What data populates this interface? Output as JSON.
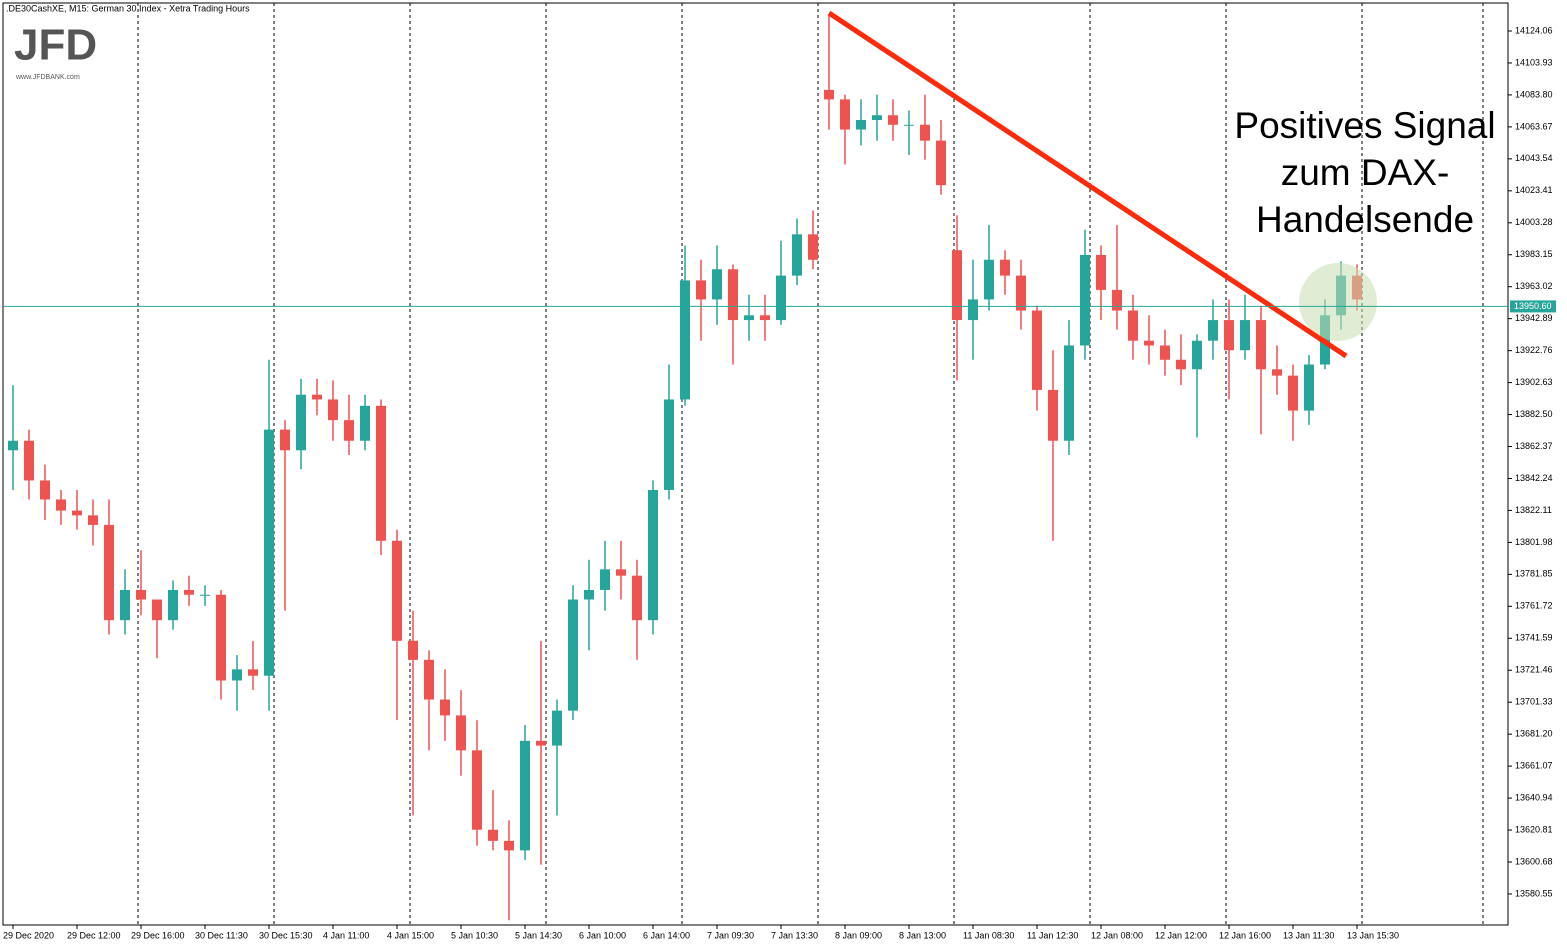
{
  "header": {
    "title": ".DE30CashXE, M15:  German 30 Index  - Xetra Trading Hours",
    "logo": "JFD",
    "logo_url": "www.JFDBANK.com"
  },
  "chart_data": {
    "type": "candlestick",
    "categories": [
      "29 Dec 2020",
      null,
      null,
      null,
      "29 Dec 12:00",
      null,
      null,
      null,
      "29 Dec 16:00",
      null,
      null,
      null,
      "30 Dec 11:30",
      null,
      null,
      null,
      "30 Dec 15:30",
      null,
      null,
      null,
      "4 Jan 11:00",
      null,
      null,
      null,
      "4 Jan 15:00",
      null,
      null,
      null,
      "5 Jan 10:30",
      null,
      null,
      null,
      "5 Jan 14:30",
      null,
      null,
      null,
      "6 Jan 10:00",
      null,
      null,
      null,
      "6 Jan 14:00",
      null,
      null,
      null,
      "7 Jan 09:30",
      null,
      null,
      null,
      "7 Jan 13:30",
      null,
      null,
      null,
      "8 Jan 09:00",
      null,
      null,
      null,
      "8 Jan 13:00",
      null,
      null,
      null,
      "11 Jan 08:30",
      null,
      null,
      null,
      "11 Jan 12:30",
      null,
      null,
      null,
      "12 Jan 08:00",
      null,
      null,
      null,
      "12 Jan 12:00",
      null,
      null,
      null,
      "12 Jan 16:00",
      null,
      null,
      null,
      "13 Jan 11:30",
      null,
      null,
      null,
      "13 Jan 15:30"
    ],
    "open": [
      13860,
      13866,
      13841,
      13829,
      13822,
      13819,
      13813,
      13753,
      13772,
      13766,
      13753,
      13772,
      13769,
      13769,
      13715,
      13722,
      13718,
      13873,
      13860,
      13895,
      13892,
      13879,
      13866,
      13888,
      13803,
      13740,
      13728,
      13703,
      13693,
      13671,
      13621,
      13614,
      13608,
      13677,
      13674,
      13696,
      13766,
      13772,
      13785,
      13781,
      13753,
      13835,
      13892,
      13967,
      13955,
      13974,
      13942,
      13945,
      13942,
      13970,
      13996,
      14087,
      14081,
      14062,
      14068,
      14071,
      14065,
      14065,
      14055,
      13986,
      13942,
      13955,
      13980,
      13970,
      13948,
      13898,
      13866,
      13926,
      13983,
      13961,
      13948,
      13929,
      13926,
      13917,
      13911,
      13929,
      13942,
      13923,
      13942,
      13911,
      13907,
      13885,
      13914,
      13945,
      13970
    ],
    "high": [
      13901,
      13873,
      13851,
      13835,
      13835,
      13829,
      13829,
      13785,
      13797,
      13766,
      13778,
      13781,
      13775,
      13772,
      13731,
      13740,
      13917,
      13879,
      13905,
      13905,
      13904,
      13895,
      13895,
      13892,
      13810,
      13759,
      13734,
      13722,
      13709,
      13690,
      13646,
      13627,
      13687,
      13740,
      13703,
      13775,
      13791,
      13803,
      13803,
      13791,
      13841,
      13914,
      13989,
      13980,
      13989,
      13977,
      13958,
      13958,
      13992,
      14006,
      14011,
      14134,
      14084,
      14081,
      14084,
      14081,
      14074,
      14084,
      14068,
      14008,
      13980,
      14002,
      13986,
      13980,
      13951,
      13923,
      13942,
      13999,
      13989,
      14002,
      13958,
      13945,
      13936,
      13933,
      13933,
      13955,
      13955,
      13958,
      13951,
      13926,
      13914,
      13920,
      13955,
      13979,
      13977
    ],
    "low": [
      13835,
      13829,
      13816,
      13813,
      13810,
      13800,
      13744,
      13744,
      13756,
      13729,
      13747,
      13762,
      13762,
      13703,
      13696,
      13709,
      13696,
      13759,
      13848,
      13882,
      13866,
      13857,
      13860,
      13794,
      13690,
      13630,
      13671,
      13677,
      13655,
      13611,
      13608,
      13564,
      13602,
      13599,
      13630,
      13690,
      13734,
      13759,
      13766,
      13728,
      13744,
      13829,
      13888,
      13929,
      13939,
      13914,
      13929,
      13929,
      13939,
      13964,
      13974,
      14062,
      14040,
      14052,
      14055,
      14055,
      14046,
      14043,
      14021,
      13904,
      13917,
      13948,
      13958,
      13936,
      13885,
      13803,
      13857,
      13917,
      13942,
      13936,
      13917,
      13914,
      13907,
      13901,
      13868,
      13917,
      13892,
      13917,
      13870,
      13895,
      13866,
      13876,
      13911,
      13936,
      13948
    ],
    "close": [
      13866,
      13841,
      13829,
      13822,
      13819,
      13813,
      13753,
      13772,
      13766,
      13753,
      13772,
      13769,
      13769,
      13715,
      13722,
      13718,
      13873,
      13860,
      13895,
      13892,
      13879,
      13866,
      13888,
      13803,
      13740,
      13728,
      13703,
      13693,
      13671,
      13621,
      13614,
      13608,
      13677,
      13674,
      13696,
      13766,
      13772,
      13785,
      13781,
      13753,
      13835,
      13892,
      13967,
      13955,
      13974,
      13942,
      13945,
      13942,
      13970,
      13996,
      13980,
      14081,
      14062,
      14068,
      14071,
      14065,
      14065,
      14055,
      14027,
      13942,
      13955,
      13980,
      13970,
      13948,
      13898,
      13866,
      13926,
      13983,
      13961,
      13948,
      13929,
      13926,
      13917,
      13911,
      13929,
      13942,
      13923,
      13942,
      13911,
      13907,
      13885,
      13914,
      13945,
      13970,
      13955
    ],
    "up_color": "#26a69a",
    "down_color": "#ef5350",
    "ylim": [
      13561.0,
      14141.7
    ],
    "yticks": [
      14124.06,
      14103.93,
      {
        "value": 14083.8,
        "label": "14083.80"
      },
      14063.67,
      14043.54,
      14023.41,
      14003.28,
      13983.15,
      13963.02,
      13942.89,
      13922.76,
      13902.63,
      {
        "value": 13882.5,
        "label": "13882.50"
      },
      13862.37,
      13842.24,
      13822.11,
      13801.98,
      13781.85,
      13761.72,
      13741.59,
      13721.46,
      13701.33,
      {
        "value": 13681.2,
        "label": "13681.20"
      },
      13661.07,
      13640.94,
      13620.81,
      13600.68,
      13580.55
    ],
    "last_price": {
      "value": 13950.6,
      "label": "13950.60"
    },
    "annotation": [
      "Positives Signal",
      "zum DAX-",
      "Handelsende"
    ]
  }
}
